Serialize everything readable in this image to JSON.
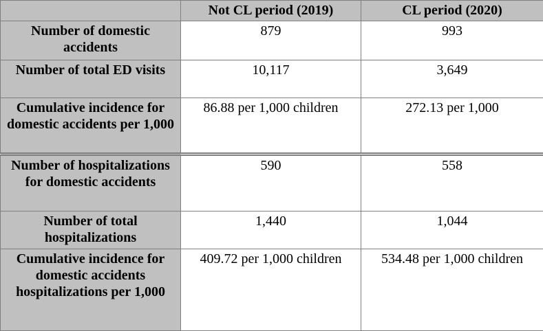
{
  "table": {
    "columns": [
      "Not CL period (2019)",
      "CL period (2020)"
    ],
    "rows": [
      [
        "Number of domestic accidents",
        "879",
        "993"
      ],
      [
        "Number of total ED visits",
        "10,117",
        "3,649"
      ],
      [
        "Cumulative incidence for domestic accidents per 1,000",
        "86.88 per 1,000 children",
        "272.13 per 1,000"
      ],
      [
        "Number of hospitalizations for domestic accidents",
        "590",
        "558"
      ],
      [
        "Number of total hospitalizations",
        "1,440",
        "1,044"
      ],
      [
        "Cumulative incidence for domestic accidents hospitalizations per 1,000",
        "409.72 per 1,000 children",
        "534.48 per 1,000 children"
      ]
    ]
  }
}
